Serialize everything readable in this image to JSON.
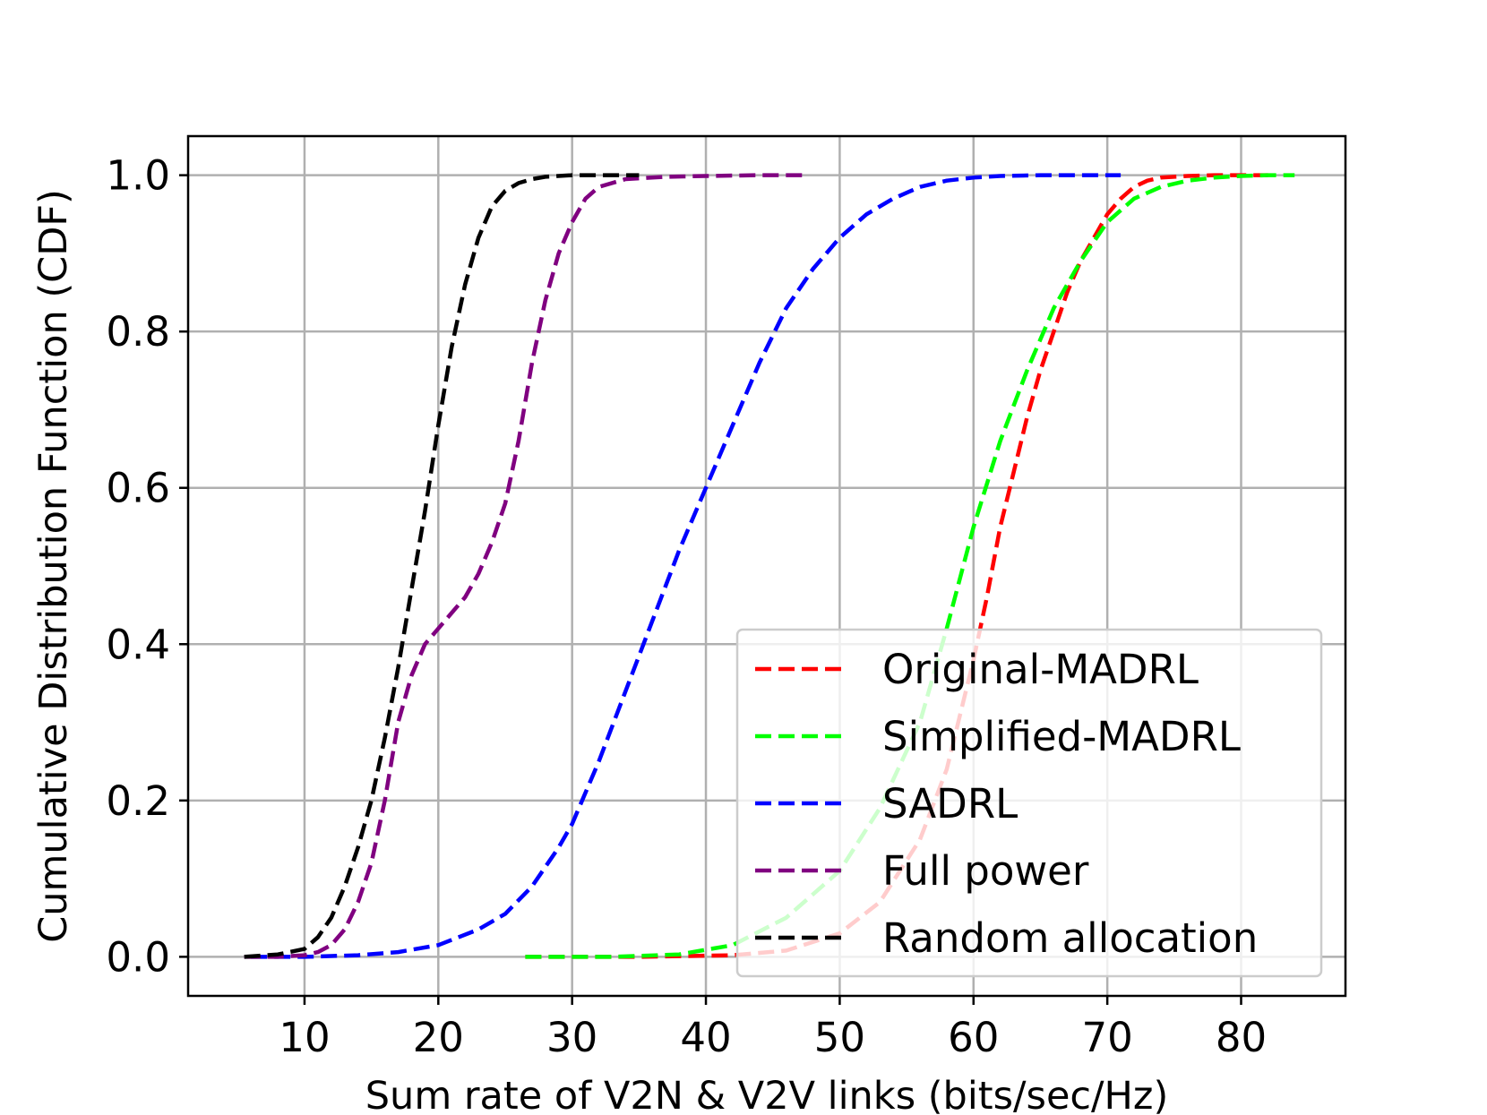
{
  "chart_data": {
    "type": "line",
    "title": "",
    "xlabel": "Sum rate of V2N & V2V links (bits/sec/Hz)",
    "ylabel": "Cumulative Distribution Function (CDF)",
    "xlim": [
      1.3,
      87.8
    ],
    "ylim": [
      -0.05,
      1.05
    ],
    "xticks": [
      10,
      20,
      30,
      40,
      50,
      60,
      70,
      80
    ],
    "xtick_labels": [
      "10",
      "20",
      "30",
      "40",
      "50",
      "60",
      "70",
      "80"
    ],
    "yticks": [
      0.0,
      0.2,
      0.4,
      0.6,
      0.8,
      1.0
    ],
    "ytick_labels": [
      "0.0",
      "0.2",
      "0.4",
      "0.6",
      "0.8",
      "1.0"
    ],
    "grid": true,
    "legend_position": "lower-right",
    "series": [
      {
        "name": "Original-MADRL",
        "color": "#ff0000",
        "x": [
          26.5,
          35,
          42,
          46,
          50,
          53,
          56,
          58,
          60,
          61,
          62,
          63,
          64,
          65,
          66,
          67,
          68,
          69,
          70,
          71,
          72,
          73,
          74,
          76,
          78,
          80,
          82
        ],
        "y": [
          0.0,
          0.0,
          0.002,
          0.008,
          0.03,
          0.07,
          0.15,
          0.24,
          0.38,
          0.46,
          0.55,
          0.62,
          0.69,
          0.75,
          0.8,
          0.85,
          0.89,
          0.92,
          0.95,
          0.97,
          0.985,
          0.993,
          0.997,
          0.999,
          1.0,
          1.0,
          1.0
        ]
      },
      {
        "name": "Simplified-MADRL",
        "color": "#00ff00",
        "x": [
          26.5,
          33,
          38,
          42,
          46,
          50,
          53,
          56,
          58,
          60,
          62,
          64,
          66,
          68,
          70,
          72,
          74,
          76,
          78,
          80,
          82,
          84
        ],
        "y": [
          0.0,
          0.0,
          0.003,
          0.015,
          0.05,
          0.11,
          0.19,
          0.3,
          0.42,
          0.55,
          0.66,
          0.75,
          0.83,
          0.89,
          0.94,
          0.97,
          0.985,
          0.993,
          0.997,
          0.999,
          1.0,
          1.0
        ]
      },
      {
        "name": "SADRL",
        "color": "#0000ff",
        "x": [
          6,
          10,
          14,
          17,
          20,
          23,
          25,
          27,
          29,
          30,
          32,
          34,
          36,
          38,
          40,
          42,
          44,
          46,
          48,
          50,
          52,
          54,
          56,
          58,
          60,
          62,
          65,
          68,
          71
        ],
        "y": [
          0.0,
          0.0,
          0.002,
          0.006,
          0.015,
          0.035,
          0.055,
          0.09,
          0.14,
          0.17,
          0.25,
          0.34,
          0.43,
          0.52,
          0.6,
          0.68,
          0.76,
          0.83,
          0.88,
          0.92,
          0.95,
          0.97,
          0.985,
          0.993,
          0.997,
          0.999,
          1.0,
          1.0,
          1.0
        ]
      },
      {
        "name": "Full power",
        "color": "#800080",
        "x": [
          5.5,
          8,
          10,
          11,
          12,
          13,
          14,
          15,
          16,
          17,
          18,
          19,
          20,
          21,
          22,
          23,
          24,
          25,
          26,
          27,
          28,
          29,
          30,
          31,
          32,
          34,
          37,
          40,
          44,
          47.5
        ],
        "y": [
          0.0,
          0.0,
          0.002,
          0.006,
          0.015,
          0.035,
          0.07,
          0.12,
          0.2,
          0.3,
          0.36,
          0.4,
          0.42,
          0.44,
          0.46,
          0.49,
          0.53,
          0.58,
          0.66,
          0.76,
          0.84,
          0.9,
          0.94,
          0.97,
          0.985,
          0.995,
          0.998,
          0.999,
          1.0,
          1.0
        ]
      },
      {
        "name": "Random allocation",
        "color": "#000000",
        "x": [
          5.5,
          8,
          10,
          11,
          12,
          13,
          14,
          15,
          16,
          17,
          18,
          19,
          20,
          21,
          22,
          23,
          24,
          25,
          26,
          27,
          28,
          30,
          32,
          35
        ],
        "y": [
          0.0,
          0.003,
          0.01,
          0.025,
          0.05,
          0.09,
          0.14,
          0.2,
          0.28,
          0.37,
          0.47,
          0.57,
          0.68,
          0.78,
          0.86,
          0.92,
          0.96,
          0.98,
          0.99,
          0.995,
          0.998,
          1.0,
          1.0,
          1.0
        ]
      }
    ]
  }
}
